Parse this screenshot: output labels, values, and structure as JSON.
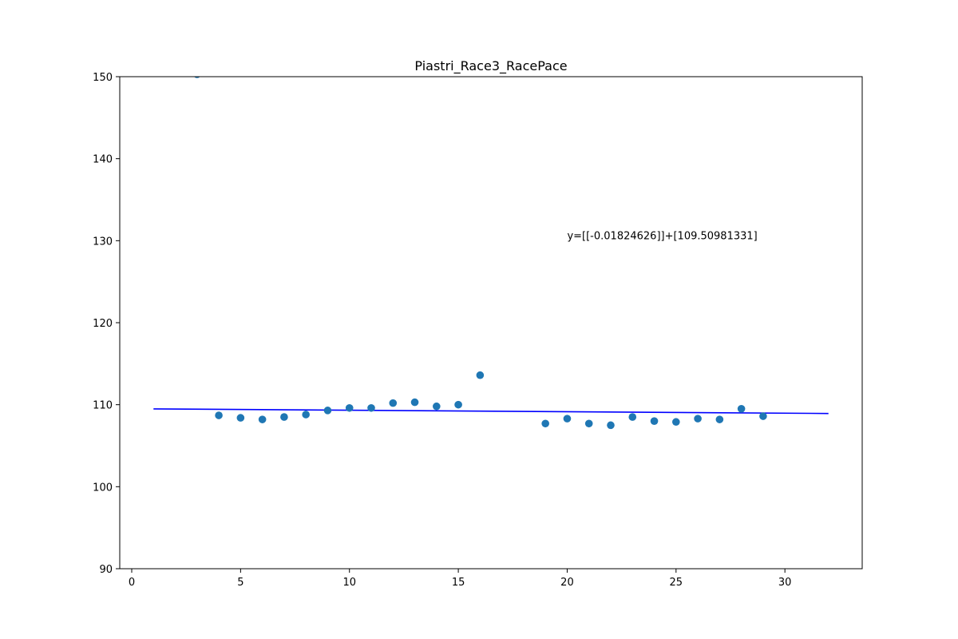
{
  "chart_data": {
    "type": "scatter",
    "title": "Piastri_Race3_RacePace",
    "xlabel": "",
    "ylabel": "",
    "xlim": [
      -0.55,
      33.55
    ],
    "ylim": [
      90,
      150
    ],
    "x_ticks": [
      0,
      5,
      10,
      15,
      20,
      25,
      30
    ],
    "y_ticks": [
      90,
      100,
      110,
      120,
      130,
      140,
      150
    ],
    "grid": false,
    "legend": "none",
    "series": [
      {
        "kind": "scatter",
        "color": "#1f77b4",
        "points": [
          {
            "x": 3,
            "y": 150.3
          },
          {
            "x": 4,
            "y": 108.7
          },
          {
            "x": 5,
            "y": 108.4
          },
          {
            "x": 6,
            "y": 108.2
          },
          {
            "x": 7,
            "y": 108.5
          },
          {
            "x": 8,
            "y": 108.8
          },
          {
            "x": 9,
            "y": 109.3
          },
          {
            "x": 10,
            "y": 109.6
          },
          {
            "x": 11,
            "y": 109.6
          },
          {
            "x": 12,
            "y": 110.2
          },
          {
            "x": 13,
            "y": 110.3
          },
          {
            "x": 14,
            "y": 109.8
          },
          {
            "x": 15,
            "y": 110.0
          },
          {
            "x": 16,
            "y": 113.6
          },
          {
            "x": 19,
            "y": 107.7
          },
          {
            "x": 20,
            "y": 108.3
          },
          {
            "x": 21,
            "y": 107.7
          },
          {
            "x": 22,
            "y": 107.5
          },
          {
            "x": 23,
            "y": 108.5
          },
          {
            "x": 24,
            "y": 108.0
          },
          {
            "x": 25,
            "y": 107.9
          },
          {
            "x": 26,
            "y": 108.3
          },
          {
            "x": 27,
            "y": 108.2
          },
          {
            "x": 28,
            "y": 109.5
          },
          {
            "x": 29,
            "y": 108.6
          }
        ]
      },
      {
        "kind": "line",
        "color": "#0000ff",
        "points": [
          {
            "x": 1,
            "y": 109.49
          },
          {
            "x": 32,
            "y": 108.93
          }
        ]
      }
    ],
    "annotations": [
      {
        "text": "y=[[-0.01824626]]+[109.50981331]",
        "x": 20,
        "y": 130
      }
    ]
  }
}
